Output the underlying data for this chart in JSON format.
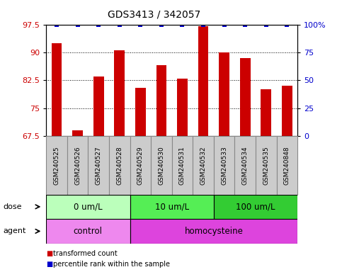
{
  "title": "GDS3413 / 342057",
  "samples": [
    "GSM240525",
    "GSM240526",
    "GSM240527",
    "GSM240528",
    "GSM240529",
    "GSM240530",
    "GSM240531",
    "GSM240532",
    "GSM240533",
    "GSM240534",
    "GSM240535",
    "GSM240848"
  ],
  "red_values": [
    92.5,
    69.0,
    83.5,
    90.5,
    80.5,
    86.5,
    83.0,
    97.0,
    90.0,
    88.5,
    80.0,
    81.0
  ],
  "blue_values": [
    100,
    100,
    100,
    100,
    100,
    100,
    100,
    100,
    100,
    100,
    100,
    100
  ],
  "ylim_left": [
    67.5,
    97.5
  ],
  "ylim_right": [
    0,
    100
  ],
  "yticks_left": [
    67.5,
    75.0,
    82.5,
    90.0,
    97.5
  ],
  "ytick_labels_left": [
    "67.5",
    "75",
    "82.5",
    "90",
    "97.5"
  ],
  "yticks_right": [
    0,
    25,
    50,
    75,
    100
  ],
  "ytick_labels_right": [
    "0",
    "25",
    "50",
    "75",
    "100%"
  ],
  "red_color": "#cc0000",
  "blue_color": "#0000cc",
  "bar_width": 0.5,
  "dose_groups": [
    {
      "label": "0 um/L",
      "start": 0,
      "end": 3,
      "color": "#bbffbb"
    },
    {
      "label": "10 um/L",
      "start": 4,
      "end": 7,
      "color": "#55ee55"
    },
    {
      "label": "100 um/L",
      "start": 8,
      "end": 11,
      "color": "#33cc33"
    }
  ],
  "agent_groups": [
    {
      "label": "control",
      "start": 0,
      "end": 3,
      "color": "#ee88ee"
    },
    {
      "label": "homocysteine",
      "start": 4,
      "end": 11,
      "color": "#dd44dd"
    }
  ],
  "dose_label": "dose",
  "agent_label": "agent",
  "legend_red": "transformed count",
  "legend_blue": "percentile rank within the sample",
  "bg_color": "#ffffff",
  "tick_label_color_left": "#cc0000",
  "tick_label_color_right": "#0000cc",
  "sample_bg_color": "#cccccc",
  "sample_border_color": "#888888"
}
